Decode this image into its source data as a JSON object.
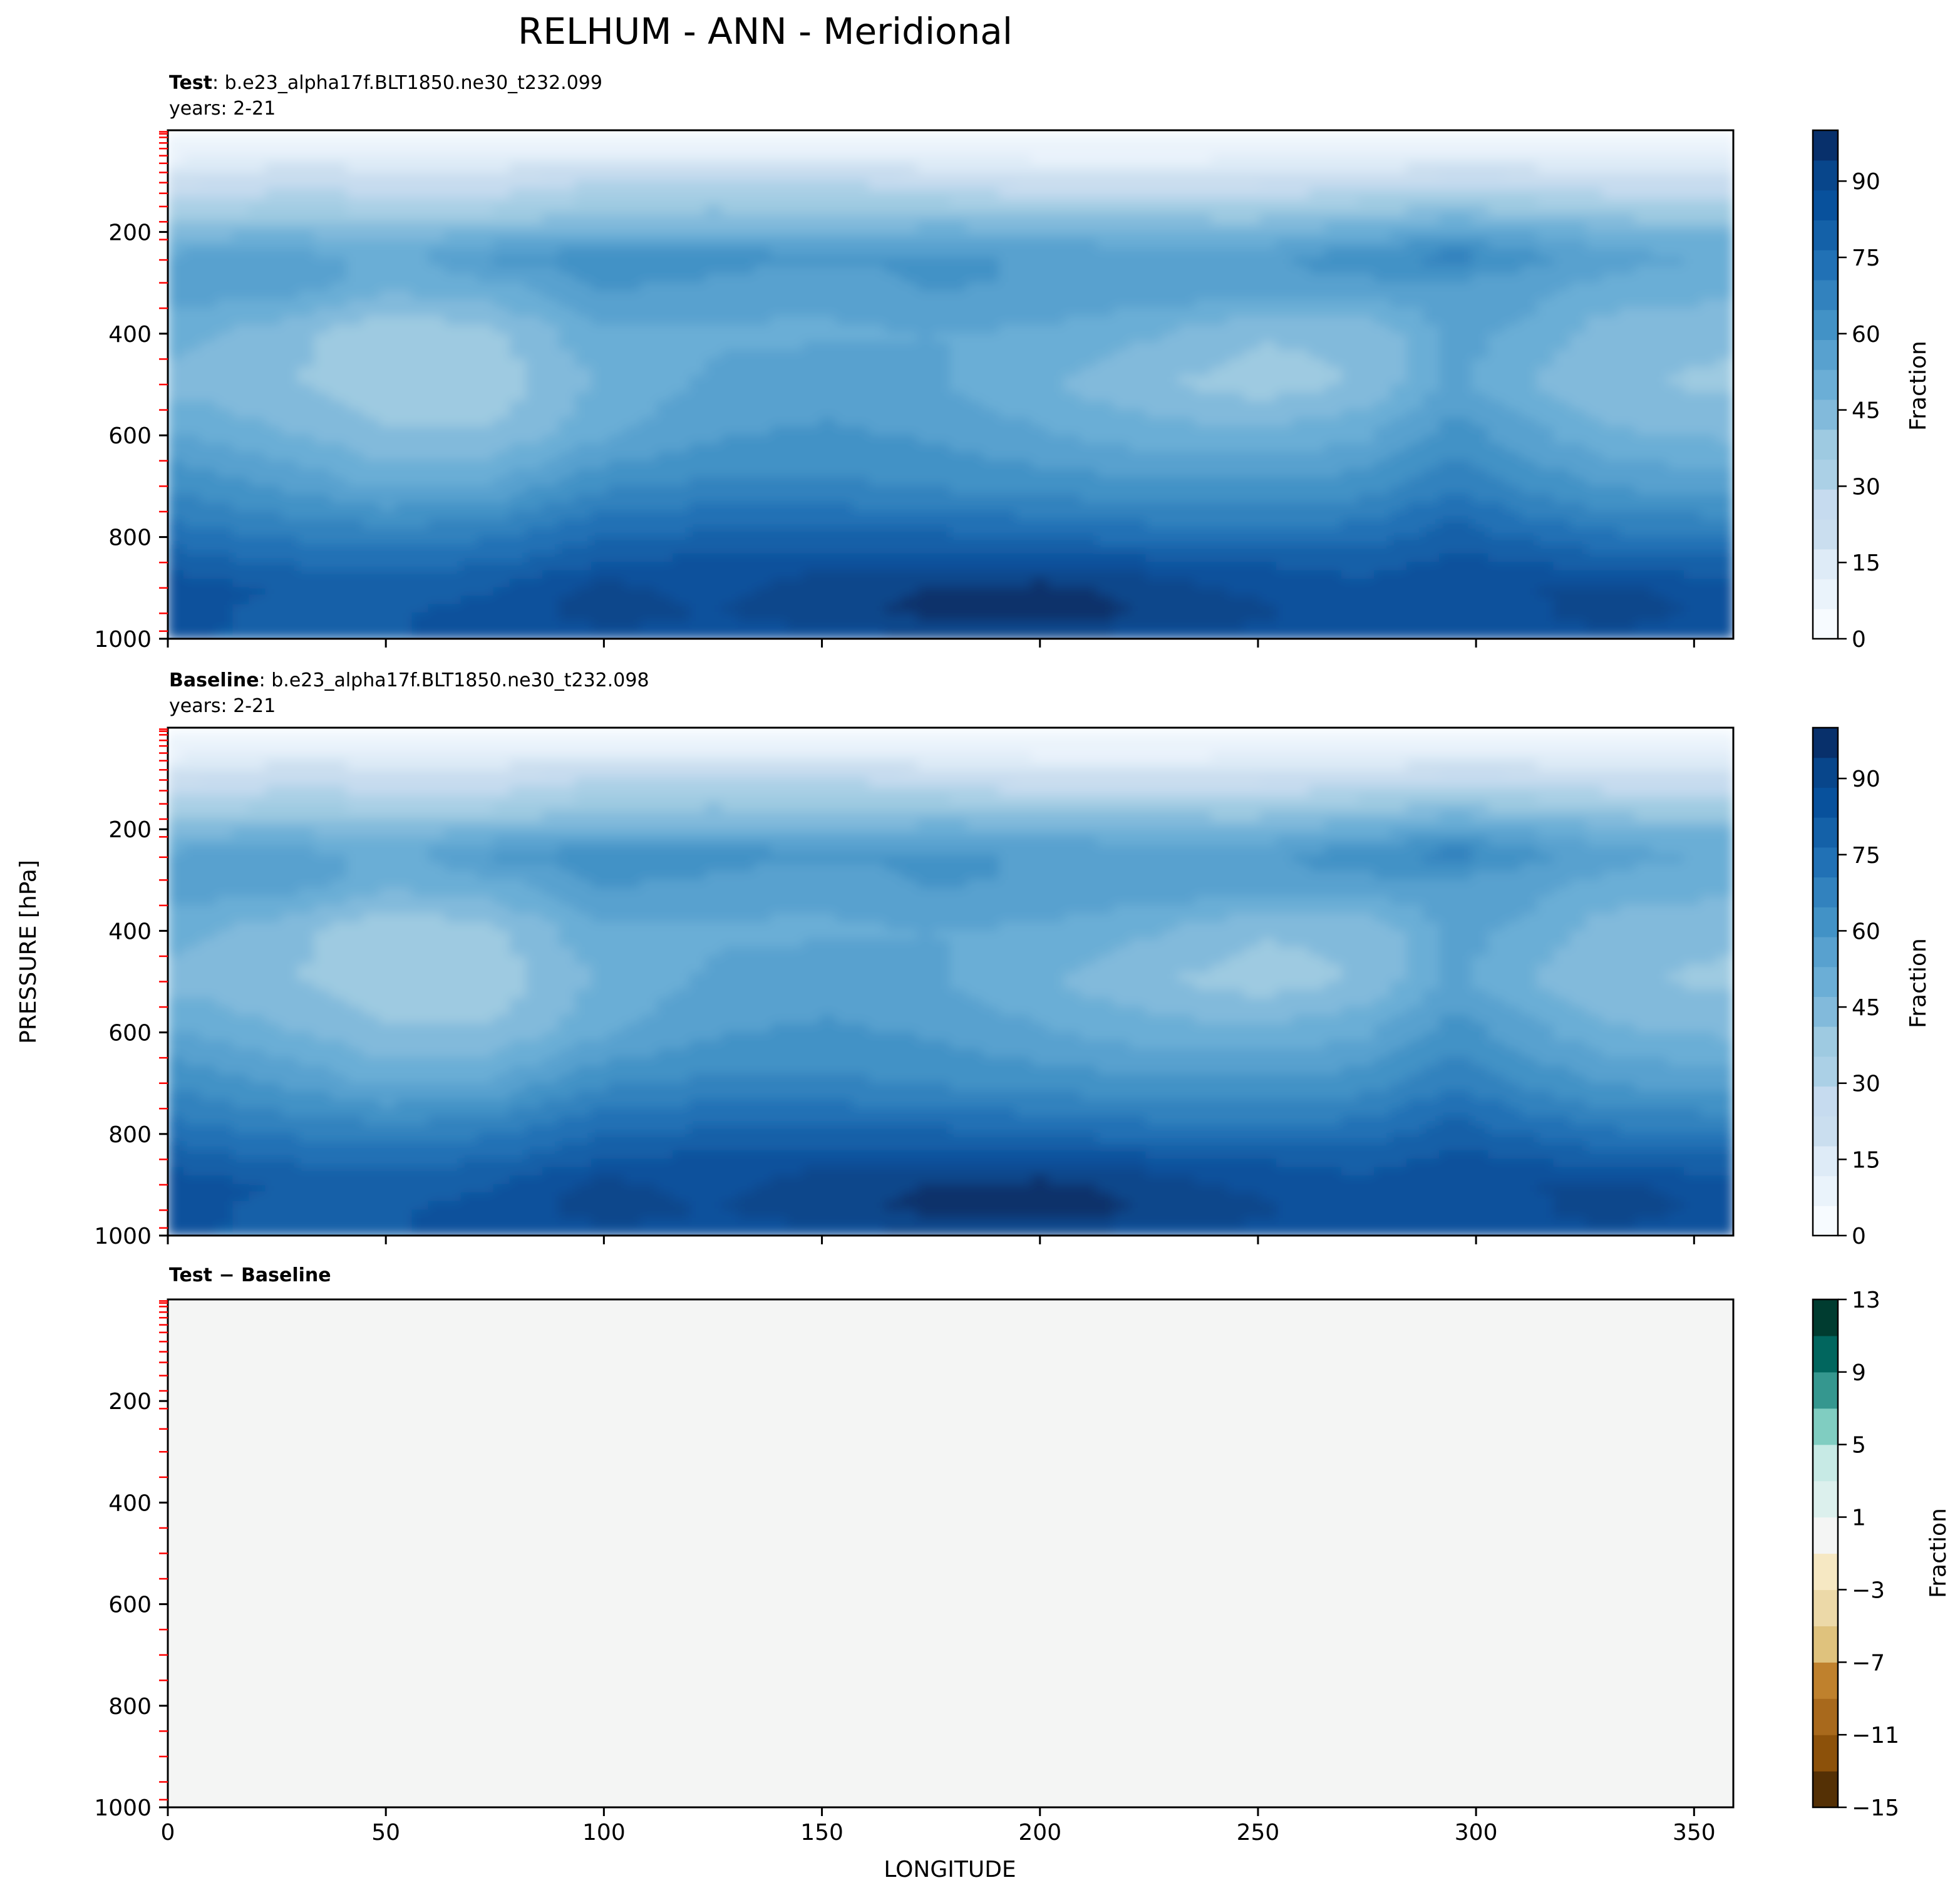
{
  "figure": {
    "title": "RELHUM - ANN - Meridional",
    "ylabel": "PRESSURE [hPa]",
    "xlabel": "LONGITUDE"
  },
  "colors": {
    "blues": [
      "#f7fbff",
      "#eaf3fb",
      "#deebf7",
      "#cadeef",
      "#c6dbef",
      "#abd0e6",
      "#9ecae1",
      "#82badb",
      "#6baed6",
      "#58a1cf",
      "#4292c6",
      "#3282be",
      "#2171b5",
      "#1461a8",
      "#08519c",
      "#08468b",
      "#08306b"
    ],
    "brbg": [
      "#543005",
      "#8c510a",
      "#a8691c",
      "#bf812d",
      "#dfc27d",
      "#ecd9a8",
      "#f6e8c3",
      "#f4f5f4",
      "#dcf0ed",
      "#c7eae5",
      "#80cdc1",
      "#35978f",
      "#01665e",
      "#003c30"
    ],
    "diff_fill": "#f4f5f4",
    "level_tick": "#ff0000"
  },
  "chart_data": [
    {
      "type": "heatmap",
      "panel": "test",
      "subtitle_bold": "Test",
      "subtitle_rest": ": b.e23_alpha17f.BLT1850.ne30_t232.099",
      "years": "years: 2-21",
      "colorbar_label": "Fraction",
      "colorbar_ticks": [
        "0",
        "15",
        "30",
        "45",
        "60",
        "75",
        "90"
      ],
      "x_ticks": [
        "0",
        "50",
        "100",
        "150",
        "200",
        "250",
        "300",
        "350"
      ],
      "y_ticks": [
        "200",
        "400",
        "600",
        "800",
        "1000"
      ],
      "xlim": [
        0,
        359
      ],
      "ylim": [
        1000,
        0
      ],
      "clim": [
        0,
        100
      ],
      "x_nodes": [
        0,
        25,
        50,
        75,
        100,
        125,
        150,
        175,
        200,
        225,
        250,
        275,
        295,
        310,
        330,
        359
      ],
      "y_nodes": [
        0,
        50,
        100,
        150,
        200,
        250,
        300,
        400,
        500,
        600,
        700,
        800,
        850,
        900,
        950,
        1000
      ],
      "values": [
        [
          3,
          3,
          3,
          3,
          3,
          3,
          3,
          3,
          3,
          3,
          3,
          3,
          3,
          3,
          3,
          3
        ],
        [
          10,
          10,
          10,
          10,
          10,
          10,
          10,
          10,
          10,
          10,
          10,
          10,
          10,
          10,
          10,
          10
        ],
        [
          20,
          26,
          25,
          24,
          30,
          30,
          29,
          25,
          20,
          20,
          21,
          24,
          27,
          26,
          23,
          22
        ],
        [
          31,
          34,
          33,
          33,
          38,
          40,
          39,
          38,
          36,
          35,
          35,
          38,
          40,
          38,
          35,
          34
        ],
        [
          44,
          46,
          44,
          46,
          48,
          48,
          47,
          49,
          49,
          48,
          47,
          50,
          55,
          52,
          48,
          46
        ],
        [
          54,
          57,
          50,
          60,
          62,
          62,
          60,
          60,
          58,
          57,
          58,
          62,
          68,
          62,
          55,
          52
        ],
        [
          56,
          58,
          50,
          52,
          60,
          58,
          54,
          60,
          58,
          58,
          58,
          58,
          58,
          56,
          52,
          50
        ],
        [
          50,
          44,
          36,
          40,
          52,
          52,
          52,
          53,
          52,
          48,
          42,
          42,
          55,
          52,
          44,
          42
        ],
        [
          45,
          42,
          38,
          38,
          48,
          54,
          56,
          54,
          48,
          42,
          38,
          42,
          55,
          48,
          42,
          40
        ],
        [
          54,
          48,
          42,
          42,
          52,
          58,
          60,
          58,
          54,
          50,
          48,
          52,
          62,
          56,
          48,
          46
        ],
        [
          64,
          58,
          52,
          54,
          64,
          66,
          66,
          64,
          62,
          60,
          60,
          62,
          70,
          64,
          58,
          56
        ],
        [
          74,
          70,
          68,
          70,
          76,
          78,
          78,
          78,
          76,
          74,
          72,
          74,
          80,
          76,
          72,
          70
        ],
        [
          80,
          76,
          74,
          76,
          82,
          84,
          86,
          86,
          86,
          84,
          82,
          80,
          84,
          82,
          80,
          78
        ],
        [
          86,
          82,
          80,
          82,
          90,
          86,
          92,
          94,
          96,
          92,
          86,
          84,
          86,
          88,
          90,
          84
        ],
        [
          86,
          80,
          82,
          84,
          92,
          88,
          92,
          96,
          98,
          94,
          90,
          84,
          84,
          86,
          92,
          86
        ],
        [
          84,
          80,
          82,
          84,
          86,
          86,
          86,
          88,
          88,
          86,
          86,
          84,
          84,
          84,
          86,
          84
        ]
      ]
    },
    {
      "type": "heatmap",
      "panel": "baseline",
      "subtitle_bold": "Baseline",
      "subtitle_rest": ": b.e23_alpha17f.BLT1850.ne30_t232.098",
      "years": "years: 2-21",
      "colorbar_label": "Fraction",
      "colorbar_ticks": [
        "0",
        "15",
        "30",
        "45",
        "60",
        "75",
        "90"
      ],
      "x_ticks": [
        "0",
        "50",
        "100",
        "150",
        "200",
        "250",
        "300",
        "350"
      ],
      "y_ticks": [
        "200",
        "400",
        "600",
        "800",
        "1000"
      ],
      "xlim": [
        0,
        359
      ],
      "ylim": [
        1000,
        0
      ],
      "clim": [
        0,
        100
      ],
      "same_field_as": "test"
    },
    {
      "type": "heatmap",
      "panel": "difference",
      "subtitle_bold": "Test − Baseline",
      "colorbar_label": "Fraction",
      "colorbar_ticks": [
        "−15",
        "−11",
        "−7",
        "−3",
        "1",
        "5",
        "9",
        "13"
      ],
      "x_ticks": [
        "0",
        "50",
        "100",
        "150",
        "200",
        "250",
        "300",
        "350"
      ],
      "y_ticks": [
        "200",
        "400",
        "600",
        "800",
        "1000"
      ],
      "xlim": [
        0,
        359
      ],
      "ylim": [
        1000,
        0
      ],
      "clim": [
        -15,
        13
      ],
      "value": 0
    }
  ]
}
